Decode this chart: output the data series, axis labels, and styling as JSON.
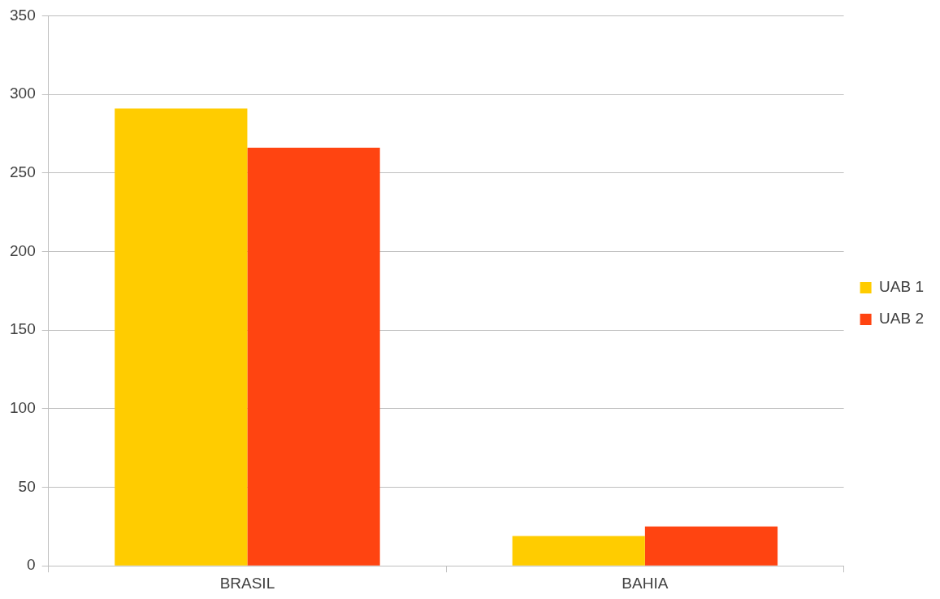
{
  "chart_data": {
    "type": "bar",
    "categories": [
      "BRASIL",
      "BAHIA"
    ],
    "series": [
      {
        "name": "UAB 1",
        "color": "#ffcc00",
        "values": [
          291,
          19
        ]
      },
      {
        "name": "UAB 2",
        "color": "#ff4411",
        "values": [
          266,
          25
        ]
      }
    ],
    "ylim": [
      0,
      350
    ],
    "yticks": [
      0,
      50,
      100,
      150,
      200,
      250,
      300,
      350
    ],
    "grid": "y",
    "legend": "right"
  }
}
